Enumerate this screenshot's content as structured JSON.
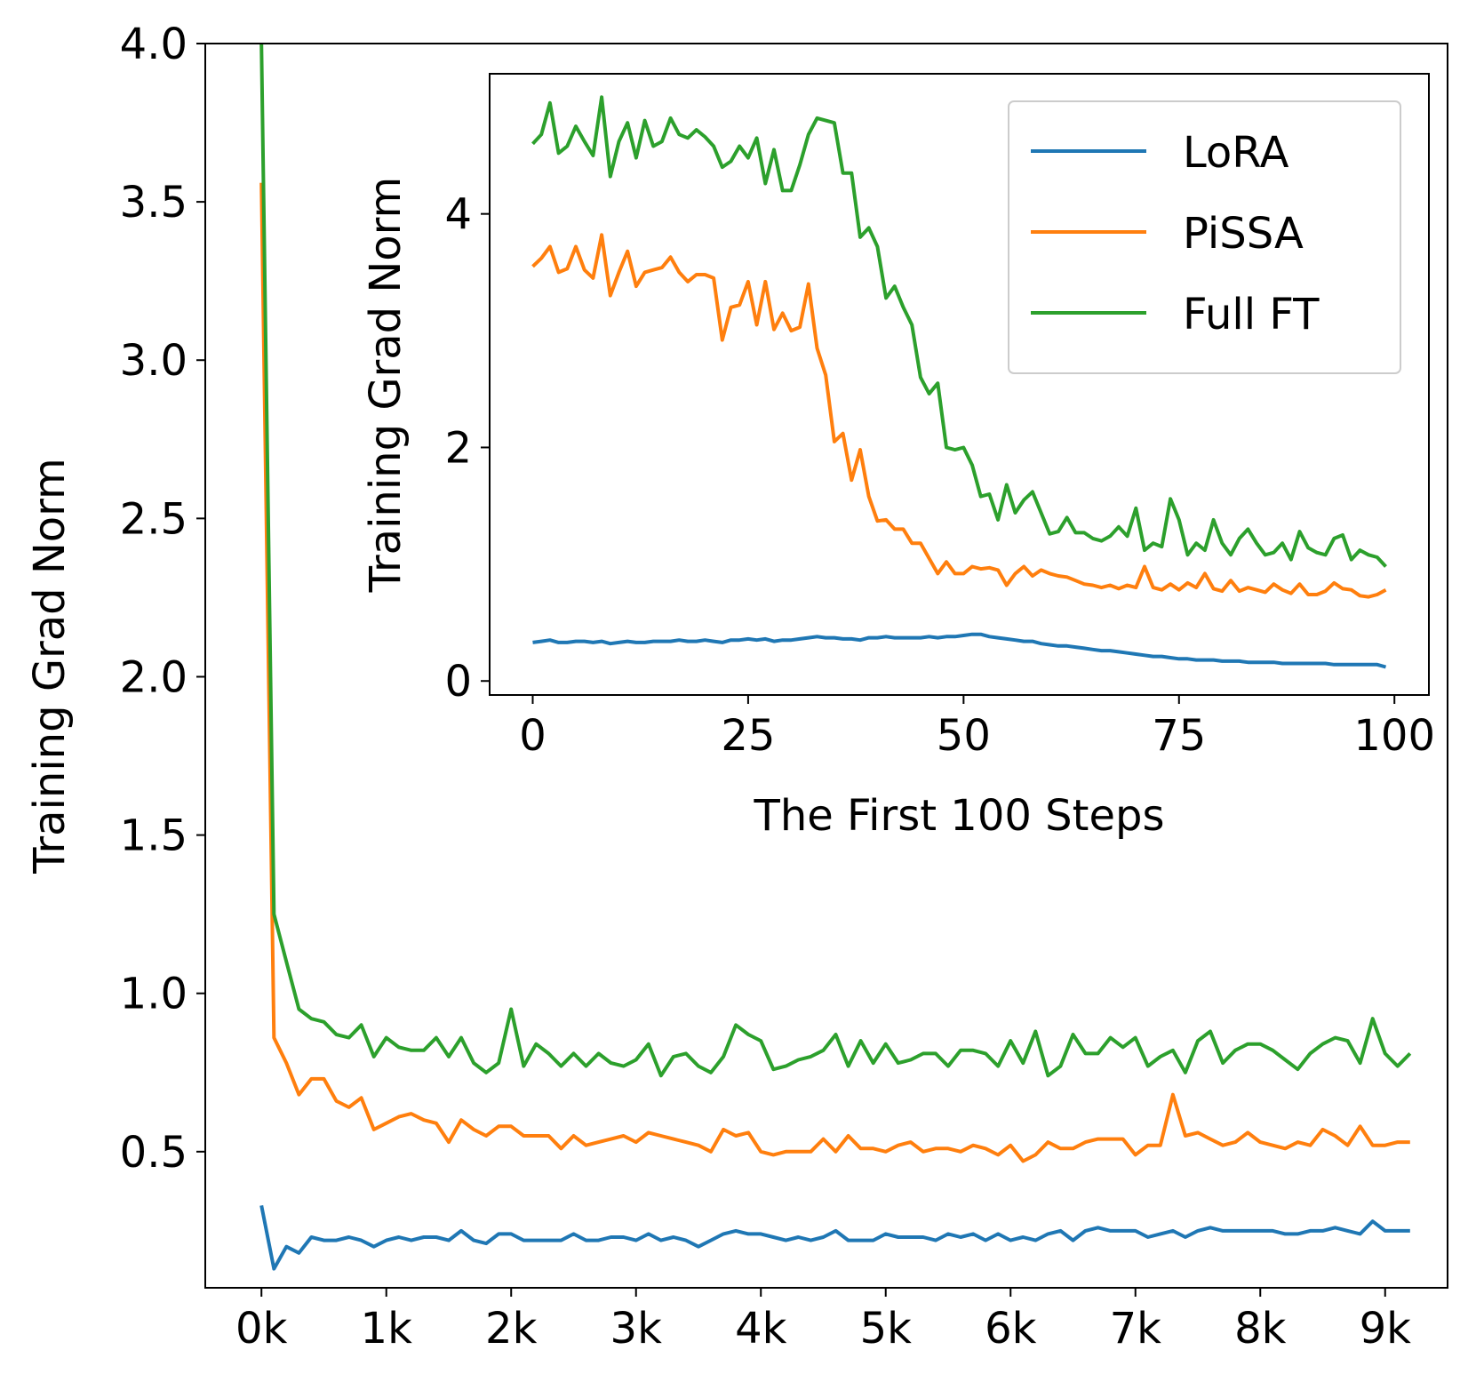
{
  "colors": {
    "lora": "#1f77b4",
    "pissa": "#ff7f0e",
    "fullft": "#2ca02c"
  },
  "chart_data": [
    {
      "type": "line",
      "id": "main",
      "title": "",
      "xlabel": "",
      "ylabel": "Training Grad Norm",
      "xlim": [
        -0.45,
        9.5
      ],
      "ylim": [
        0.07,
        4.0
      ],
      "xticks": [
        0,
        1,
        2,
        3,
        4,
        5,
        6,
        7,
        8,
        9
      ],
      "xtick_labels": [
        "0k",
        "1k",
        "2k",
        "3k",
        "4k",
        "5k",
        "6k",
        "7k",
        "8k",
        "9k"
      ],
      "yticks": [
        0.5,
        1.0,
        1.5,
        2.0,
        2.5,
        3.0,
        3.5,
        4.0
      ],
      "ytick_labels": [
        "0.5",
        "1.0",
        "1.5",
        "2.0",
        "2.5",
        "3.0",
        "3.5",
        "4.0"
      ],
      "x": [
        0,
        0.1,
        0.2,
        0.3,
        0.4,
        0.5,
        0.6,
        0.7,
        0.8,
        0.9,
        1.0,
        1.1,
        1.2,
        1.3,
        1.4,
        1.5,
        1.6,
        1.7,
        1.8,
        1.9,
        2.0,
        2.1,
        2.2,
        2.3,
        2.4,
        2.5,
        2.6,
        2.7,
        2.8,
        2.9,
        3.0,
        3.1,
        3.2,
        3.3,
        3.4,
        3.5,
        3.6,
        3.7,
        3.8,
        3.9,
        4.0,
        4.1,
        4.2,
        4.3,
        4.4,
        4.5,
        4.6,
        4.7,
        4.8,
        4.9,
        5.0,
        5.1,
        5.2,
        5.3,
        5.4,
        5.5,
        5.6,
        5.7,
        5.8,
        5.9,
        6.0,
        6.1,
        6.2,
        6.3,
        6.4,
        6.5,
        6.6,
        6.7,
        6.8,
        6.9,
        7.0,
        7.1,
        7.2,
        7.3,
        7.4,
        7.5,
        7.6,
        7.7,
        7.8,
        7.9,
        8.0,
        8.1,
        8.2,
        8.3,
        8.4,
        8.5,
        8.6,
        8.7,
        8.8,
        8.9,
        9.0,
        9.1,
        9.2
      ],
      "series": [
        {
          "name": "LoRA",
          "color_key": "lora",
          "values": [
            0.33,
            0.13,
            0.2,
            0.18,
            0.23,
            0.22,
            0.22,
            0.23,
            0.22,
            0.2,
            0.22,
            0.23,
            0.22,
            0.23,
            0.23,
            0.22,
            0.25,
            0.22,
            0.21,
            0.24,
            0.24,
            0.22,
            0.22,
            0.22,
            0.22,
            0.24,
            0.22,
            0.22,
            0.23,
            0.23,
            0.22,
            0.24,
            0.22,
            0.23,
            0.22,
            0.2,
            0.22,
            0.24,
            0.25,
            0.24,
            0.24,
            0.23,
            0.22,
            0.23,
            0.22,
            0.23,
            0.25,
            0.22,
            0.22,
            0.22,
            0.24,
            0.23,
            0.23,
            0.23,
            0.22,
            0.24,
            0.23,
            0.24,
            0.22,
            0.24,
            0.22,
            0.23,
            0.22,
            0.24,
            0.25,
            0.22,
            0.25,
            0.26,
            0.25,
            0.25,
            0.25,
            0.23,
            0.24,
            0.25,
            0.23,
            0.25,
            0.26,
            0.25,
            0.25,
            0.25,
            0.25,
            0.25,
            0.24,
            0.24,
            0.25,
            0.25,
            0.26,
            0.25,
            0.24,
            0.28,
            0.25,
            0.25,
            0.25
          ]
        },
        {
          "name": "PiSSA",
          "color_key": "pissa",
          "values": [
            3.56,
            0.86,
            0.78,
            0.68,
            0.73,
            0.73,
            0.66,
            0.64,
            0.67,
            0.57,
            0.59,
            0.61,
            0.62,
            0.6,
            0.59,
            0.53,
            0.6,
            0.57,
            0.55,
            0.58,
            0.58,
            0.55,
            0.55,
            0.55,
            0.51,
            0.55,
            0.52,
            0.53,
            0.54,
            0.55,
            0.53,
            0.56,
            0.55,
            0.54,
            0.53,
            0.52,
            0.5,
            0.57,
            0.55,
            0.56,
            0.5,
            0.49,
            0.5,
            0.5,
            0.5,
            0.54,
            0.5,
            0.55,
            0.51,
            0.51,
            0.5,
            0.52,
            0.53,
            0.5,
            0.51,
            0.51,
            0.5,
            0.52,
            0.51,
            0.49,
            0.52,
            0.47,
            0.49,
            0.53,
            0.51,
            0.51,
            0.53,
            0.54,
            0.54,
            0.54,
            0.49,
            0.52,
            0.52,
            0.68,
            0.55,
            0.56,
            0.54,
            0.52,
            0.53,
            0.56,
            0.53,
            0.52,
            0.51,
            0.53,
            0.52,
            0.57,
            0.55,
            0.52,
            0.58,
            0.52,
            0.52,
            0.53,
            0.53
          ]
        },
        {
          "name": "Full FT",
          "color_key": "fullft",
          "values": [
            4.0,
            1.25,
            1.1,
            0.95,
            0.92,
            0.91,
            0.87,
            0.86,
            0.9,
            0.8,
            0.86,
            0.83,
            0.82,
            0.82,
            0.86,
            0.8,
            0.86,
            0.78,
            0.75,
            0.78,
            0.95,
            0.77,
            0.84,
            0.81,
            0.77,
            0.81,
            0.77,
            0.81,
            0.78,
            0.77,
            0.79,
            0.84,
            0.74,
            0.8,
            0.81,
            0.77,
            0.75,
            0.8,
            0.9,
            0.87,
            0.85,
            0.76,
            0.77,
            0.79,
            0.8,
            0.82,
            0.87,
            0.77,
            0.85,
            0.78,
            0.84,
            0.78,
            0.79,
            0.81,
            0.81,
            0.77,
            0.82,
            0.82,
            0.81,
            0.77,
            0.85,
            0.78,
            0.88,
            0.74,
            0.77,
            0.87,
            0.81,
            0.81,
            0.86,
            0.83,
            0.86,
            0.77,
            0.8,
            0.82,
            0.75,
            0.85,
            0.88,
            0.78,
            0.82,
            0.84,
            0.84,
            0.82,
            0.79,
            0.76,
            0.81,
            0.84,
            0.86,
            0.85,
            0.78,
            0.92,
            0.81,
            0.77,
            0.81
          ]
        }
      ]
    },
    {
      "type": "line",
      "id": "inset",
      "title": "",
      "xlabel": "The First 100 Steps",
      "ylabel": "Training Grad Norm",
      "xlim": [
        -5,
        104
      ],
      "ylim": [
        -0.12,
        5.2
      ],
      "xticks": [
        0,
        25,
        50,
        75,
        100
      ],
      "xtick_labels": [
        "0",
        "25",
        "50",
        "75",
        "100"
      ],
      "yticks": [
        0,
        2,
        4
      ],
      "ytick_labels": [
        "0",
        "2",
        "4"
      ],
      "legend": {
        "position": "upper right"
      },
      "series": [
        {
          "name": "LoRA",
          "color_key": "lora",
          "values": [
            0.33,
            0.34,
            0.35,
            0.33,
            0.33,
            0.34,
            0.34,
            0.33,
            0.34,
            0.32,
            0.33,
            0.34,
            0.33,
            0.33,
            0.34,
            0.34,
            0.34,
            0.35,
            0.34,
            0.34,
            0.35,
            0.34,
            0.33,
            0.35,
            0.35,
            0.36,
            0.35,
            0.36,
            0.34,
            0.35,
            0.35,
            0.36,
            0.37,
            0.38,
            0.37,
            0.37,
            0.36,
            0.36,
            0.35,
            0.37,
            0.37,
            0.38,
            0.37,
            0.37,
            0.37,
            0.37,
            0.38,
            0.37,
            0.38,
            0.38,
            0.39,
            0.4,
            0.4,
            0.38,
            0.37,
            0.36,
            0.35,
            0.34,
            0.34,
            0.32,
            0.31,
            0.3,
            0.3,
            0.29,
            0.28,
            0.27,
            0.26,
            0.26,
            0.25,
            0.24,
            0.23,
            0.22,
            0.21,
            0.21,
            0.2,
            0.19,
            0.19,
            0.18,
            0.18,
            0.18,
            0.17,
            0.17,
            0.17,
            0.16,
            0.16,
            0.16,
            0.16,
            0.15,
            0.15,
            0.15,
            0.15,
            0.15,
            0.15,
            0.14,
            0.14,
            0.14,
            0.14,
            0.14,
            0.14,
            0.12
          ]
        },
        {
          "name": "PiSSA",
          "color_key": "pissa",
          "values": [
            3.55,
            3.62,
            3.72,
            3.5,
            3.53,
            3.72,
            3.52,
            3.45,
            3.82,
            3.3,
            3.5,
            3.68,
            3.38,
            3.5,
            3.52,
            3.54,
            3.63,
            3.5,
            3.42,
            3.48,
            3.48,
            3.45,
            2.92,
            3.2,
            3.22,
            3.42,
            3.05,
            3.42,
            3.01,
            3.15,
            3.0,
            3.03,
            3.4,
            2.85,
            2.62,
            2.05,
            2.12,
            1.72,
            1.98,
            1.58,
            1.37,
            1.38,
            1.3,
            1.3,
            1.18,
            1.18,
            1.05,
            0.92,
            1.02,
            0.92,
            0.92,
            0.98,
            0.96,
            0.97,
            0.95,
            0.82,
            0.92,
            0.98,
            0.9,
            0.95,
            0.92,
            0.9,
            0.89,
            0.86,
            0.83,
            0.82,
            0.8,
            0.82,
            0.79,
            0.82,
            0.8,
            0.98,
            0.8,
            0.78,
            0.83,
            0.78,
            0.84,
            0.8,
            0.92,
            0.79,
            0.77,
            0.86,
            0.77,
            0.8,
            0.78,
            0.76,
            0.83,
            0.78,
            0.75,
            0.83,
            0.74,
            0.74,
            0.77,
            0.84,
            0.79,
            0.78,
            0.73,
            0.72,
            0.74,
            0.78
          ]
        },
        {
          "name": "Full FT",
          "color_key": "fullft",
          "values": [
            4.6,
            4.68,
            4.95,
            4.52,
            4.58,
            4.75,
            4.62,
            4.5,
            5.0,
            4.32,
            4.62,
            4.78,
            4.48,
            4.8,
            4.58,
            4.62,
            4.82,
            4.68,
            4.65,
            4.72,
            4.66,
            4.58,
            4.4,
            4.45,
            4.58,
            4.48,
            4.65,
            4.26,
            4.55,
            4.2,
            4.2,
            4.42,
            4.68,
            4.82,
            4.8,
            4.78,
            4.35,
            4.35,
            3.8,
            3.88,
            3.72,
            3.28,
            3.38,
            3.2,
            3.05,
            2.6,
            2.46,
            2.55,
            2.0,
            1.98,
            2.0,
            1.85,
            1.58,
            1.6,
            1.38,
            1.68,
            1.44,
            1.55,
            1.62,
            1.44,
            1.26,
            1.28,
            1.4,
            1.27,
            1.27,
            1.22,
            1.2,
            1.24,
            1.32,
            1.24,
            1.48,
            1.12,
            1.18,
            1.15,
            1.56,
            1.38,
            1.08,
            1.18,
            1.12,
            1.38,
            1.18,
            1.08,
            1.22,
            1.3,
            1.18,
            1.08,
            1.1,
            1.18,
            1.04,
            1.28,
            1.14,
            1.1,
            1.08,
            1.22,
            1.25,
            1.04,
            1.12,
            1.08,
            1.06,
            0.98
          ]
        }
      ]
    }
  ]
}
